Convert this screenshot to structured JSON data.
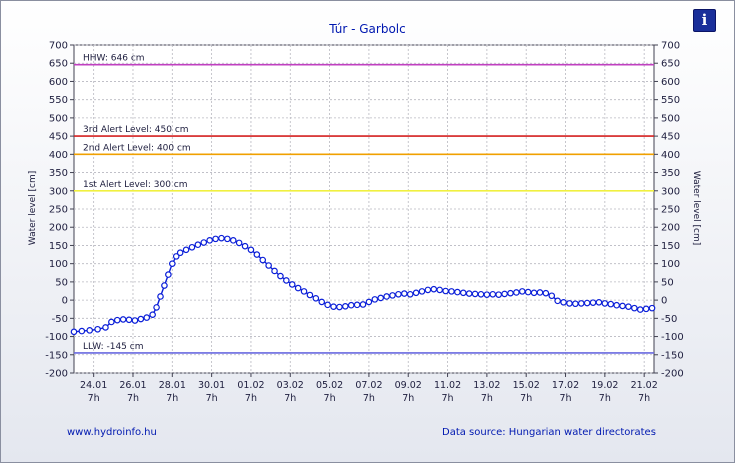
{
  "title": "Túr - Garbolc",
  "footer": {
    "website": "www.hydroinfo.hu",
    "source": "Data source: Hungarian water directorates"
  },
  "info_icon": "info-icon",
  "colors": {
    "series": "#0a1ed8",
    "hhw": "#c040c0",
    "alert3": "#d42020",
    "alert2": "#f0a000",
    "alert1": "#f0f040",
    "llw": "#6a6ae0",
    "title": "#0018b0"
  },
  "chart_data": {
    "type": "line",
    "title": "Túr - Garbolc",
    "ylabel_left": "Water level [cm]",
    "ylabel_right": "Water level [cm]",
    "ylim": [
      -200,
      700
    ],
    "yticks": [
      -200,
      -150,
      -100,
      -50,
      0,
      50,
      100,
      150,
      200,
      250,
      300,
      350,
      400,
      450,
      500,
      550,
      600,
      650,
      700
    ],
    "grid": true,
    "x_range_days": [
      0,
      29.5
    ],
    "xticks": [
      {
        "day": 1,
        "date": "24.01",
        "hour": "7h"
      },
      {
        "day": 3,
        "date": "26.01",
        "hour": "7h"
      },
      {
        "day": 5,
        "date": "28.01",
        "hour": "7h"
      },
      {
        "day": 7,
        "date": "30.01",
        "hour": "7h"
      },
      {
        "day": 9,
        "date": "01.02",
        "hour": "7h"
      },
      {
        "day": 11,
        "date": "03.02",
        "hour": "7h"
      },
      {
        "day": 13,
        "date": "05.02",
        "hour": "7h"
      },
      {
        "day": 15,
        "date": "07.02",
        "hour": "7h"
      },
      {
        "day": 17,
        "date": "09.02",
        "hour": "7h"
      },
      {
        "day": 19,
        "date": "11.02",
        "hour": "7h"
      },
      {
        "day": 21,
        "date": "13.02",
        "hour": "7h"
      },
      {
        "day": 23,
        "date": "15.02",
        "hour": "7h"
      },
      {
        "day": 25,
        "date": "17.02",
        "hour": "7h"
      },
      {
        "day": 27,
        "date": "19.02",
        "hour": "7h"
      },
      {
        "day": 29,
        "date": "21.02",
        "hour": "7h"
      }
    ],
    "thresholds": [
      {
        "label": "HHW: 646 cm",
        "value": 646,
        "color": "#c040c0"
      },
      {
        "label": "3rd Alert Level: 450 cm",
        "value": 450,
        "color": "#d42020"
      },
      {
        "label": "2nd Alert Level: 400 cm",
        "value": 400,
        "color": "#f0a000"
      },
      {
        "label": "1st Alert Level: 300 cm",
        "value": 300,
        "color": "#f0f040"
      },
      {
        "label": "LLW: -145 cm",
        "value": -145,
        "color": "#6a6ae0"
      }
    ],
    "series": [
      {
        "points": [
          [
            0.0,
            -87
          ],
          [
            0.4,
            -85
          ],
          [
            0.8,
            -83
          ],
          [
            1.2,
            -80
          ],
          [
            1.6,
            -75
          ],
          [
            1.9,
            -60
          ],
          [
            2.2,
            -55
          ],
          [
            2.5,
            -53
          ],
          [
            2.8,
            -54
          ],
          [
            3.1,
            -56
          ],
          [
            3.4,
            -52
          ],
          [
            3.7,
            -48
          ],
          [
            4.0,
            -40
          ],
          [
            4.2,
            -20
          ],
          [
            4.4,
            10
          ],
          [
            4.6,
            40
          ],
          [
            4.8,
            70
          ],
          [
            5.0,
            100
          ],
          [
            5.2,
            120
          ],
          [
            5.4,
            130
          ],
          [
            5.7,
            138
          ],
          [
            6.0,
            145
          ],
          [
            6.3,
            152
          ],
          [
            6.6,
            158
          ],
          [
            6.9,
            164
          ],
          [
            7.2,
            168
          ],
          [
            7.5,
            170
          ],
          [
            7.8,
            168
          ],
          [
            8.1,
            164
          ],
          [
            8.4,
            157
          ],
          [
            8.7,
            148
          ],
          [
            9.0,
            138
          ],
          [
            9.3,
            125
          ],
          [
            9.6,
            110
          ],
          [
            9.9,
            95
          ],
          [
            10.2,
            80
          ],
          [
            10.5,
            66
          ],
          [
            10.8,
            54
          ],
          [
            11.1,
            43
          ],
          [
            11.4,
            33
          ],
          [
            11.7,
            24
          ],
          [
            12.0,
            14
          ],
          [
            12.3,
            5
          ],
          [
            12.6,
            -5
          ],
          [
            12.9,
            -13
          ],
          [
            13.2,
            -18
          ],
          [
            13.5,
            -19
          ],
          [
            13.8,
            -17
          ],
          [
            14.1,
            -14
          ],
          [
            14.4,
            -13
          ],
          [
            14.7,
            -12
          ],
          [
            15.0,
            -5
          ],
          [
            15.3,
            2
          ],
          [
            15.6,
            6
          ],
          [
            15.9,
            10
          ],
          [
            16.2,
            13
          ],
          [
            16.5,
            16
          ],
          [
            16.8,
            18
          ],
          [
            17.1,
            16
          ],
          [
            17.4,
            20
          ],
          [
            17.7,
            24
          ],
          [
            18.0,
            28
          ],
          [
            18.3,
            30
          ],
          [
            18.6,
            28
          ],
          [
            18.9,
            25
          ],
          [
            19.2,
            24
          ],
          [
            19.5,
            22
          ],
          [
            19.8,
            20
          ],
          [
            20.1,
            18
          ],
          [
            20.4,
            17
          ],
          [
            20.7,
            16
          ],
          [
            21.0,
            15
          ],
          [
            21.3,
            16
          ],
          [
            21.6,
            15
          ],
          [
            21.9,
            17
          ],
          [
            22.2,
            19
          ],
          [
            22.5,
            21
          ],
          [
            22.8,
            24
          ],
          [
            23.1,
            22
          ],
          [
            23.4,
            20
          ],
          [
            23.7,
            21
          ],
          [
            24.0,
            19
          ],
          [
            24.3,
            12
          ],
          [
            24.6,
            -2
          ],
          [
            24.9,
            -6
          ],
          [
            25.2,
            -9
          ],
          [
            25.5,
            -10
          ],
          [
            25.8,
            -9
          ],
          [
            26.1,
            -8
          ],
          [
            26.4,
            -7
          ],
          [
            26.7,
            -6
          ],
          [
            27.0,
            -9
          ],
          [
            27.3,
            -11
          ],
          [
            27.6,
            -14
          ],
          [
            27.9,
            -16
          ],
          [
            28.2,
            -18
          ],
          [
            28.5,
            -22
          ],
          [
            28.8,
            -26
          ],
          [
            29.1,
            -24
          ],
          [
            29.4,
            -22
          ]
        ]
      }
    ]
  }
}
